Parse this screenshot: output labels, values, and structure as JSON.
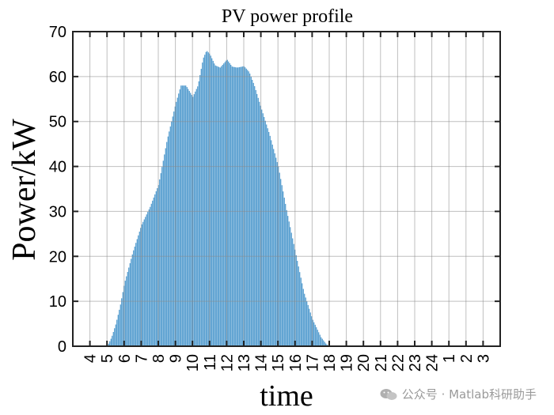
{
  "chart_data": {
    "type": "bar",
    "title": "PV power profile",
    "xlabel": "time",
    "ylabel": "Power/kW",
    "ylim": [
      0,
      70
    ],
    "yticks": [
      0,
      10,
      20,
      30,
      40,
      50,
      60,
      70
    ],
    "x_tick_labels": [
      "4",
      "5",
      "6",
      "7",
      "8",
      "9",
      "10",
      "11",
      "12",
      "13",
      "14",
      "15",
      "16",
      "17",
      "18",
      "19",
      "20",
      "21",
      "22",
      "23",
      "24",
      "1",
      "2",
      "3"
    ],
    "grid": true,
    "bar_color": "#3d8fc8",
    "x_hours": [
      5,
      5.25,
      5.5,
      5.75,
      6,
      6.5,
      7,
      7.5,
      8,
      8.5,
      9,
      9.3,
      9.6,
      10,
      10.3,
      10.6,
      10.8,
      11,
      11.3,
      11.6,
      12,
      12.3,
      12.6,
      13,
      13.3,
      13.6,
      14,
      14.5,
      15,
      15.5,
      16,
      16.5,
      17,
      17.5,
      17.8,
      18
    ],
    "values": [
      0,
      2,
      5,
      9,
      14,
      21,
      27,
      31,
      36,
      46,
      54,
      58,
      58,
      55.5,
      58,
      64,
      65.8,
      65,
      62.5,
      62,
      63.8,
      62.2,
      62,
      62.3,
      61,
      58,
      53,
      47,
      40,
      30,
      21,
      12,
      6,
      2,
      0.5,
      0
    ]
  },
  "watermark": {
    "text": "公众号 · Matlab科研助手",
    "icon": "wechat-icon"
  }
}
